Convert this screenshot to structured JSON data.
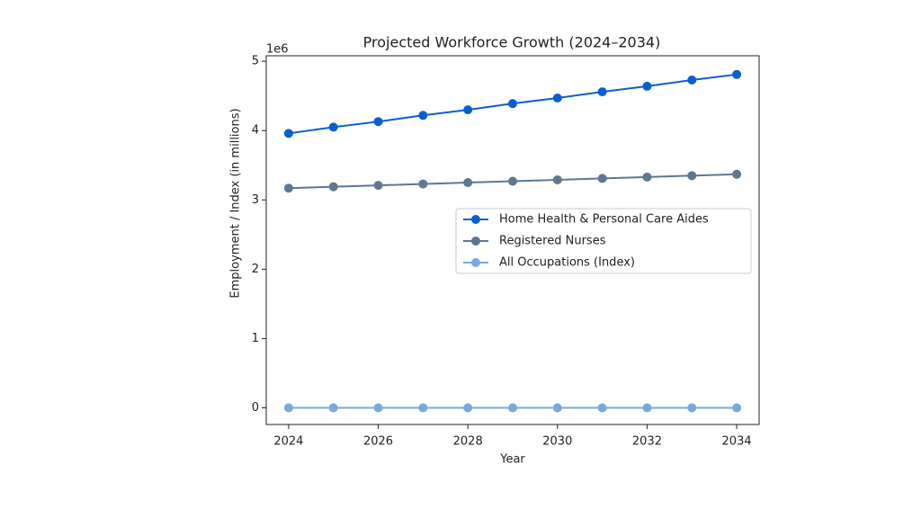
{
  "chart_data": {
    "type": "line",
    "title": "Projected Workforce Growth (2024–2034)",
    "xlabel": "Year",
    "ylabel": "Employment / Index (in millions)",
    "y_offset_label": "1e6",
    "x": [
      2024,
      2025,
      2026,
      2027,
      2028,
      2029,
      2030,
      2031,
      2032,
      2033,
      2034
    ],
    "series": [
      {
        "name": "Home Health & Personal Care Aides",
        "color": "#0a5fd0",
        "values": [
          3.96,
          4.05,
          4.13,
          4.22,
          4.3,
          4.39,
          4.47,
          4.56,
          4.64,
          4.73,
          4.81
        ]
      },
      {
        "name": "Registered Nurses",
        "color": "#5f7890",
        "values": [
          3.17,
          3.19,
          3.21,
          3.23,
          3.25,
          3.27,
          3.29,
          3.31,
          3.33,
          3.35,
          3.37
        ]
      },
      {
        "name": "All Occupations (Index)",
        "color": "#7aa8dc",
        "values": [
          0,
          0,
          0,
          0,
          0,
          0,
          0,
          0,
          0,
          0,
          0
        ]
      }
    ],
    "xlim": [
      2023.5,
      2034.5
    ],
    "xticks": [
      2024,
      2026,
      2028,
      2030,
      2032,
      2034
    ],
    "ylim": [
      -0.24,
      5.08
    ],
    "yticks": [
      0,
      1,
      2,
      3,
      4,
      5
    ],
    "grid": false,
    "legend": "center right"
  }
}
